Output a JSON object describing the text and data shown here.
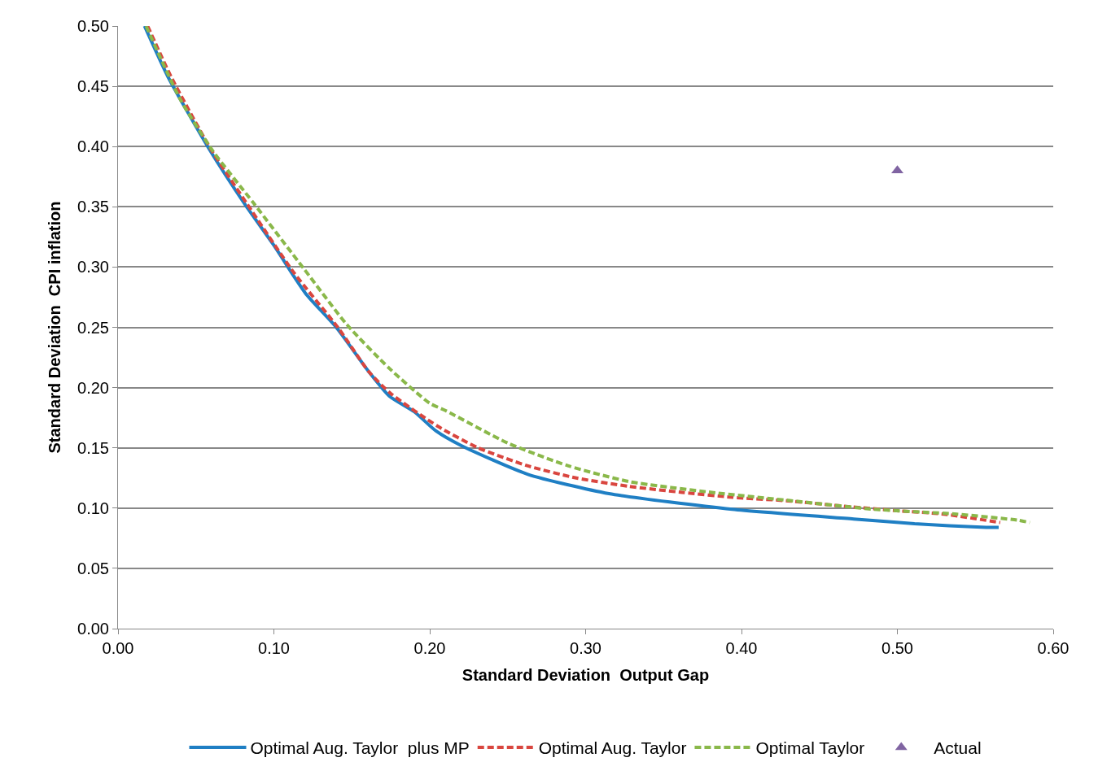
{
  "chart_data": {
    "type": "line",
    "xlabel": "Standard Deviation  Output Gap",
    "ylabel": "Standard Deviation  CPI inflation",
    "xlim": [
      0,
      0.6
    ],
    "ylim": [
      0,
      0.5
    ],
    "xticks": [
      {
        "value": 0,
        "label": "0.00"
      },
      {
        "value": 0.1,
        "label": "0.10"
      },
      {
        "value": 0.2,
        "label": "0.20"
      },
      {
        "value": 0.3,
        "label": "0.30"
      },
      {
        "value": 0.4,
        "label": "0.40"
      },
      {
        "value": 0.5,
        "label": "0.50"
      },
      {
        "value": 0.6,
        "label": "0.60"
      }
    ],
    "yticks": [
      {
        "value": 0,
        "label": "0.00"
      },
      {
        "value": 0.05,
        "label": "0.05"
      },
      {
        "value": 0.1,
        "label": "0.10"
      },
      {
        "value": 0.15,
        "label": "0.15"
      },
      {
        "value": 0.2,
        "label": "0.20"
      },
      {
        "value": 0.25,
        "label": "0.25"
      },
      {
        "value": 0.3,
        "label": "0.30"
      },
      {
        "value": 0.35,
        "label": "0.35"
      },
      {
        "value": 0.4,
        "label": "0.40"
      },
      {
        "value": 0.45,
        "label": "0.45"
      },
      {
        "value": 0.5,
        "label": "0.50"
      }
    ],
    "grid": "y",
    "legend": "bottom",
    "series": [
      {
        "name": "Optimal Aug. Taylor  plus MP",
        "color": "#1f7fc4",
        "line_style": "solid",
        "x": [
          0.017,
          0.032,
          0.058,
          0.082,
          0.1,
          0.112,
          0.121,
          0.14,
          0.161,
          0.174,
          0.19,
          0.204,
          0.22,
          0.263,
          0.315,
          0.394,
          0.472,
          0.511,
          0.557,
          0.565
        ],
        "values": [
          0.5,
          0.458,
          0.399,
          0.351,
          0.318,
          0.294,
          0.277,
          0.25,
          0.213,
          0.193,
          0.18,
          0.164,
          0.152,
          0.128,
          0.112,
          0.099,
          0.091,
          0.087,
          0.084,
          0.084
        ]
      },
      {
        "name": "Optimal Aug. Taylor",
        "color": "#d9463f",
        "line_style": "dashed",
        "x": [
          0.019,
          0.034,
          0.059,
          0.083,
          0.113,
          0.141,
          0.161,
          0.175,
          0.205,
          0.231,
          0.263,
          0.294,
          0.328,
          0.362,
          0.394,
          0.43,
          0.462,
          0.498,
          0.53,
          0.566
        ],
        "values": [
          0.5,
          0.458,
          0.399,
          0.352,
          0.295,
          0.25,
          0.213,
          0.195,
          0.168,
          0.15,
          0.135,
          0.125,
          0.118,
          0.113,
          0.109,
          0.106,
          0.102,
          0.098,
          0.095,
          0.088
        ]
      },
      {
        "name": "Optimal Taylor",
        "color": "#8ab84a",
        "line_style": "dashed",
        "x": [
          0.018,
          0.04,
          0.061,
          0.087,
          0.119,
          0.147,
          0.174,
          0.2,
          0.21,
          0.25,
          0.289,
          0.328,
          0.381,
          0.433,
          0.485,
          0.538,
          0.577,
          0.585
        ],
        "values": [
          0.5,
          0.439,
          0.396,
          0.353,
          0.299,
          0.252,
          0.216,
          0.187,
          0.181,
          0.154,
          0.135,
          0.122,
          0.113,
          0.106,
          0.099,
          0.095,
          0.09,
          0.088
        ]
      },
      {
        "name": "Actual",
        "color": "#8064a2",
        "type": "scatter",
        "marker": "triangle",
        "x": [
          0.5
        ],
        "values": [
          0.38
        ]
      }
    ]
  }
}
